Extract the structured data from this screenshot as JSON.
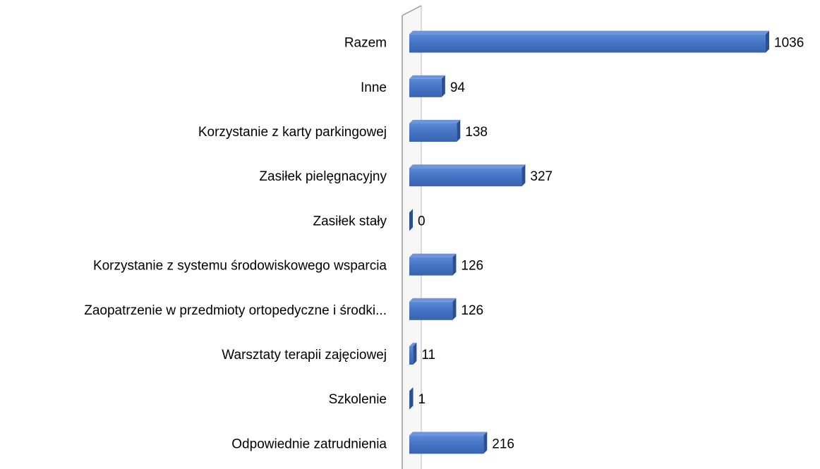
{
  "chart_data": {
    "type": "bar",
    "orientation": "horizontal",
    "categories": [
      "Razem",
      "Inne",
      "Korzystanie z karty parkingowej",
      "Zasiłek pielęgnacyjny",
      "Zasiłek stały",
      "Korzystanie z systemu środowiskowego wsparcia",
      "Zaopatrzenie w przedmioty ortopedyczne i środki...",
      "Warsztaty terapii zajęciowej",
      "Szkolenie",
      "Odpowiednie zatrudnienia"
    ],
    "values": [
      1036,
      94,
      138,
      327,
      0,
      126,
      126,
      11,
      1,
      216
    ],
    "color": "#4472c4"
  }
}
